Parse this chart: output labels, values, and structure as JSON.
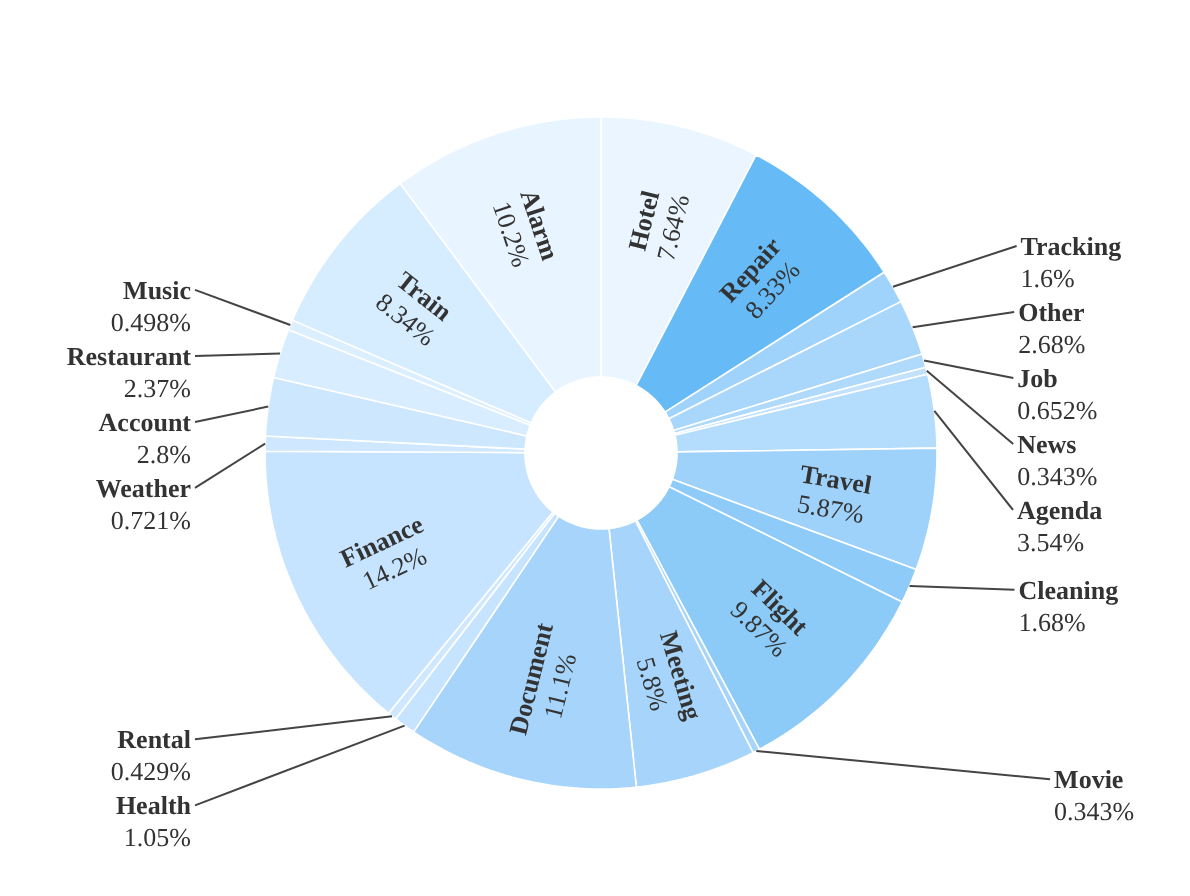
{
  "chart_data": {
    "type": "donut",
    "categories": [
      "Hotel",
      "Repair",
      "Tracking",
      "Other",
      "Job",
      "News",
      "Agenda",
      "Travel",
      "Cleaning",
      "Flight",
      "Movie",
      "Meeting",
      "Document",
      "Health",
      "Rental",
      "Finance",
      "Weather",
      "Account",
      "Restaurant",
      "Music",
      "Train",
      "Alarm"
    ],
    "values": [
      7.64,
      8.33,
      1.6,
      2.68,
      0.652,
      0.343,
      3.54,
      5.87,
      1.68,
      9.87,
      0.343,
      5.8,
      11.1,
      1.05,
      0.429,
      14.2,
      0.721,
      2.8,
      2.37,
      0.498,
      8.34,
      10.2
    ],
    "value_labels": [
      "7.64%",
      "8.33%",
      "1.6%",
      "2.68%",
      "0.652%",
      "0.343%",
      "3.54%",
      "5.87%",
      "1.68%",
      "9.87%",
      "0.343%",
      "5.8%",
      "11.1%",
      "1.05%",
      "0.429%",
      "14.2%",
      "0.721%",
      "2.8%",
      "2.37%",
      "0.498%",
      "8.34%",
      "10.2%"
    ],
    "colors": [
      "#eaf5ff",
      "#66bbf7",
      "#9fd3fb",
      "#a8d7fb",
      "#b0dafc",
      "#c2e2fd",
      "#b4dcfc",
      "#9fd2fb",
      "#8fcbf8",
      "#8ccaf8",
      "#a6d4fa",
      "#a6d4fa",
      "#a6d4fa",
      "#c6e4ff",
      "#cfe8ff",
      "#c6e4ff",
      "#cfe8ff",
      "#cde7ff",
      "#d8edff",
      "#dcefff",
      "#d6ecff",
      "#e8f4ff"
    ]
  }
}
